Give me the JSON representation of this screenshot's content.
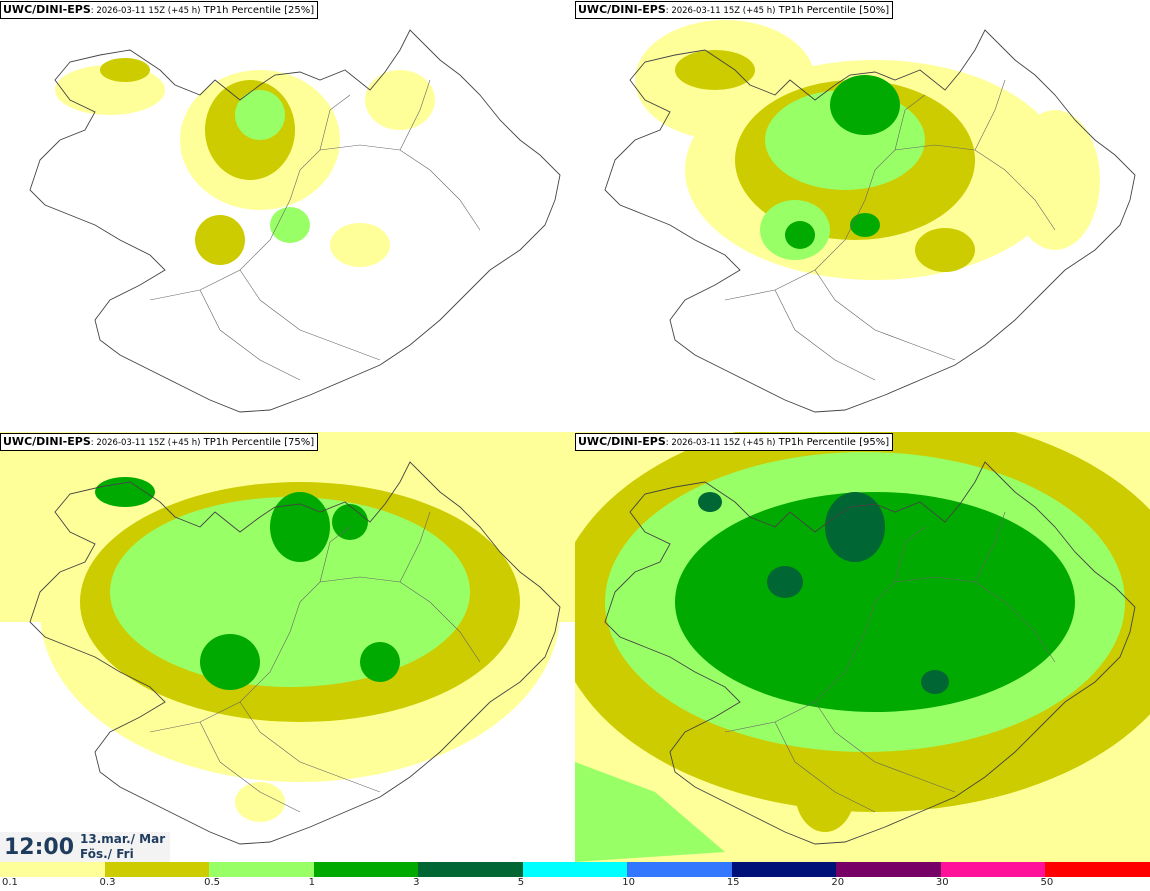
{
  "panels": [
    {
      "source": "UWC/DINI-EPS",
      "run": ": 2026-03-11 15Z (+45 h)",
      "parameter": " TP1h Percentile [25%]"
    },
    {
      "source": "UWC/DINI-EPS",
      "run": ": 2026-03-11 15Z (+45 h)",
      "parameter": " TP1h Percentile [50%]"
    },
    {
      "source": "UWC/DINI-EPS",
      "run": ": 2026-03-11 15Z (+45 h)",
      "parameter": " TP1h Percentile [75%]"
    },
    {
      "source": "UWC/DINI-EPS",
      "run": ": 2026-03-11 15Z (+45 h)",
      "parameter": " TP1h Percentile [95%]"
    }
  ],
  "valid_time": {
    "clock": "12:00",
    "date_line1": "13.mar./ Mar",
    "date_line2": "Fös./ Fri"
  },
  "colorbar": {
    "colors": [
      "#ffff99",
      "#cccc00",
      "#99ff66",
      "#00aa00",
      "#006633",
      "#00ffff",
      "#3377ff",
      "#001177",
      "#770066",
      "#ff1199",
      "#ff0000"
    ],
    "labels": [
      "0.1",
      "0.3",
      "0.5",
      "1",
      "3",
      "5",
      "10",
      "15",
      "20",
      "30",
      "50"
    ]
  }
}
